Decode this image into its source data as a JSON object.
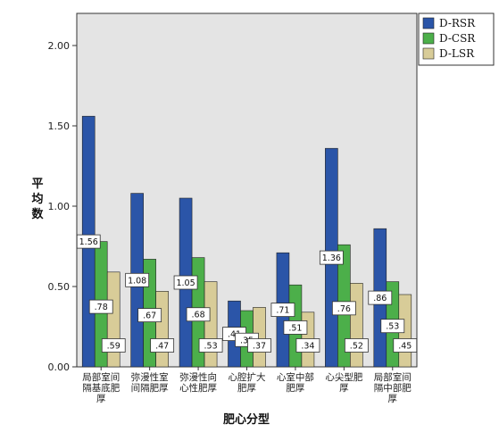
{
  "chart_data": {
    "type": "bar",
    "title": "",
    "xlabel": "肥心分型",
    "ylabel": "平均数",
    "ylim": [
      0,
      2.2
    ],
    "yticks": [
      0.0,
      0.5,
      1.0,
      1.5,
      2.0
    ],
    "ytick_labels": [
      "0.00",
      "0.50",
      "1.00",
      "1.50",
      "2.00"
    ],
    "categories": [
      "局部室间隔基底肥厚",
      "弥漫性室间隔肥厚",
      "弥漫性向心性肥厚",
      "心腔扩大肥厚",
      "心室中部肥厚",
      "心尖型肥厚",
      "局部室间隔中部肥厚"
    ],
    "category_lines": [
      [
        "局部室间",
        "隔基底肥",
        "厚"
      ],
      [
        "弥漫性室",
        "间隔肥厚"
      ],
      [
        "弥漫性向",
        "心性肥厚"
      ],
      [
        "心腔扩大",
        "肥厚"
      ],
      [
        "心室中部",
        "肥厚"
      ],
      [
        "心尖型肥",
        "厚"
      ],
      [
        "局部室间",
        "隔中部肥",
        "厚"
      ]
    ],
    "series": [
      {
        "name": "D-RSR",
        "color": "#2b55a8",
        "values": [
          1.56,
          1.08,
          1.05,
          0.41,
          0.71,
          1.36,
          0.86
        ]
      },
      {
        "name": "D-CSR",
        "color": "#4caf4a",
        "values": [
          0.78,
          0.67,
          0.68,
          0.35,
          0.51,
          0.76,
          0.53
        ]
      },
      {
        "name": "D-LSR",
        "color": "#d8cc98",
        "values": [
          0.59,
          0.47,
          0.53,
          0.37,
          0.34,
          0.52,
          0.45
        ]
      }
    ],
    "grid": false,
    "legend_position": "top-right",
    "plot_background": "#e4e4e4"
  }
}
